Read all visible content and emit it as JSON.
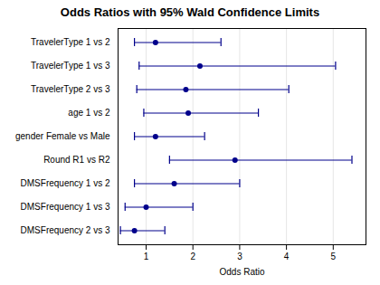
{
  "chart_data": {
    "type": "forest",
    "title": "Odds Ratios with 95% Wald Confidence Limits",
    "xlabel": "Odds Ratio",
    "categories": [
      "TravelerType 1 vs 2",
      "TravelerType 1 vs 3",
      "TravelerType 2 vs 3",
      "age 1 vs 2",
      "gender Female vs Male",
      "Round R1 vs R2",
      "DMSFrequency 1 vs 2",
      "DMSFrequency 1 vs 3",
      "DMSFrequency 2 vs 3"
    ],
    "values": [
      1.2,
      2.15,
      1.85,
      1.9,
      1.2,
      2.9,
      1.6,
      1.0,
      0.75
    ],
    "ci_lower": [
      0.75,
      0.85,
      0.8,
      0.95,
      0.75,
      1.5,
      0.75,
      0.55,
      0.45
    ],
    "ci_upper": [
      2.6,
      5.05,
      4.05,
      3.4,
      2.25,
      5.4,
      3.0,
      2.0,
      1.4
    ],
    "color": "#00008B",
    "xlim": [
      0.4,
      5.7
    ],
    "xticks": [
      1,
      2,
      3,
      4,
      5
    ],
    "grid": true
  }
}
